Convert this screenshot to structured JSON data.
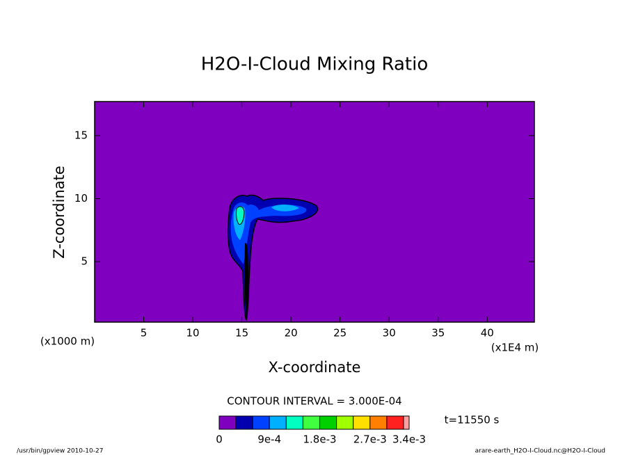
{
  "chart_data": {
    "type": "contour",
    "title": "H2O-I-Cloud Mixing Ratio",
    "xlabel": "X-coordinate",
    "ylabel": "Z-coordinate",
    "x_unit": "(x1000 m)",
    "x_unit_right": "(x1E4 m)",
    "xlim": [
      0,
      44.8
    ],
    "xticks": [
      5,
      10,
      15,
      20,
      25,
      30,
      35,
      40
    ],
    "ylim": [
      0.2,
      17.7
    ],
    "yticks": [
      5,
      10,
      15
    ],
    "contour_interval": "CONTOUR INTERVAL = 3.000E-04",
    "time_label": "t=11550 s",
    "footer_left": "/usr/bin/gpview  2010-10-27",
    "footer_right": "arare-earth_H2O-I-Cloud.nc@H2O-I-Cloud",
    "levels": [
      0,
      0.0003,
      0.0006,
      0.0009,
      0.0012,
      0.0015,
      0.0018,
      0.0021,
      0.0024,
      0.0027,
      0.003,
      0.0033,
      0.0034
    ],
    "colors": [
      "#8000c0",
      "#0000b0",
      "#0040ff",
      "#00b0ff",
      "#00ffc0",
      "#40ff40",
      "#00d000",
      "#a0ff00",
      "#ffe000",
      "#ff8000",
      "#ff2020",
      "#ffa0a0"
    ],
    "cticks": [
      0,
      {
        "value": 0.0009,
        "label": "9e-4"
      },
      {
        "value": 0.0018,
        "label": "1.8e-3"
      },
      {
        "value": 0.0027,
        "label": "2.7e-3"
      },
      {
        "value": 0.0034,
        "label": "3.4e-3"
      }
    ]
  }
}
